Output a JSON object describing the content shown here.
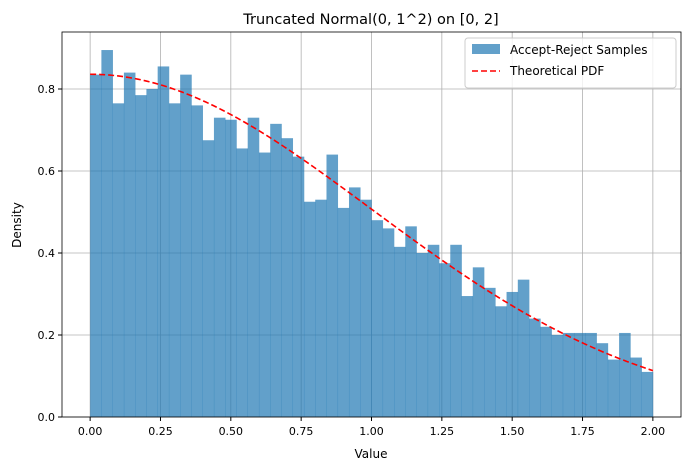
{
  "chart_data": {
    "type": "bar",
    "title": "Truncated Normal(0, 1^2) on [0, 2]",
    "xlabel": "Value",
    "ylabel": "Density",
    "xlim": [
      -0.1,
      2.1
    ],
    "ylim": [
      0,
      0.939
    ],
    "grid": true,
    "legend_placement": "top-right",
    "xticks": [
      "0.00",
      "0.25",
      "0.50",
      "0.75",
      "1.00",
      "1.25",
      "1.50",
      "1.75",
      "2.00"
    ],
    "yticks": [
      "0.0",
      "0.2",
      "0.4",
      "0.6",
      "0.8"
    ],
    "histogram": {
      "name": "Accept-Reject Samples",
      "color": "#1f77b4",
      "alpha": 0.7,
      "bin_start": 0,
      "bin_width": 0.04,
      "values": [
        0.835,
        0.895,
        0.765,
        0.84,
        0.785,
        0.8,
        0.855,
        0.765,
        0.835,
        0.76,
        0.675,
        0.73,
        0.725,
        0.655,
        0.73,
        0.645,
        0.715,
        0.68,
        0.635,
        0.525,
        0.53,
        0.64,
        0.51,
        0.56,
        0.53,
        0.48,
        0.46,
        0.415,
        0.465,
        0.4,
        0.42,
        0.375,
        0.42,
        0.295,
        0.365,
        0.315,
        0.27,
        0.305,
        0.335,
        0.24,
        0.22,
        0.2,
        0.205,
        0.205,
        0.205,
        0.18,
        0.14,
        0.205,
        0.145,
        0.11
      ]
    },
    "pdf_line": {
      "name": "Theoretical PDF",
      "color": "#ff0000",
      "style": "dashed",
      "x_range": [
        0,
        2
      ]
    }
  }
}
